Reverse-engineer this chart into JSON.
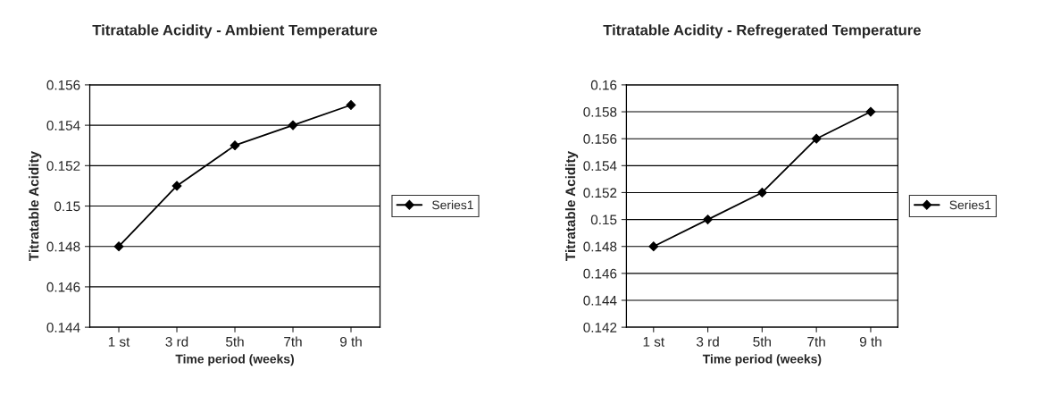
{
  "chart_data": [
    {
      "type": "line",
      "title": "Titratable Acidity - Ambient Temperature",
      "xlabel": "Time period (weeks)",
      "ylabel": "Titratable Acidity",
      "categories": [
        "1 st",
        "3 rd",
        "5th",
        "7th",
        "9 th"
      ],
      "series": [
        {
          "name": "Series1",
          "color": "#000000",
          "values": [
            0.148,
            0.151,
            0.153,
            0.154,
            0.155
          ]
        }
      ],
      "ylim": [
        0.144,
        0.156
      ],
      "yticks": [
        0.144,
        0.146,
        0.148,
        0.15,
        0.152,
        0.154,
        0.156
      ],
      "grid": "y",
      "legend": "right",
      "marker": "diamond",
      "line_style": "solid"
    },
    {
      "type": "line",
      "title": "Titratable Acidity - Refregerated Temperature",
      "xlabel": "Time period (weeks)",
      "ylabel": "Titratable Acidity",
      "categories": [
        "1 st",
        "3 rd",
        "5th",
        "7th",
        "9 th"
      ],
      "series": [
        {
          "name": "Series1",
          "color": "#000000",
          "values": [
            0.148,
            0.15,
            0.152,
            0.156,
            0.158
          ]
        }
      ],
      "ylim": [
        0.142,
        0.16
      ],
      "yticks": [
        0.142,
        0.144,
        0.146,
        0.148,
        0.15,
        0.152,
        0.154,
        0.156,
        0.158,
        0.16
      ],
      "grid": "y",
      "legend": "right",
      "marker": "diamond",
      "line_style": "solid"
    }
  ]
}
